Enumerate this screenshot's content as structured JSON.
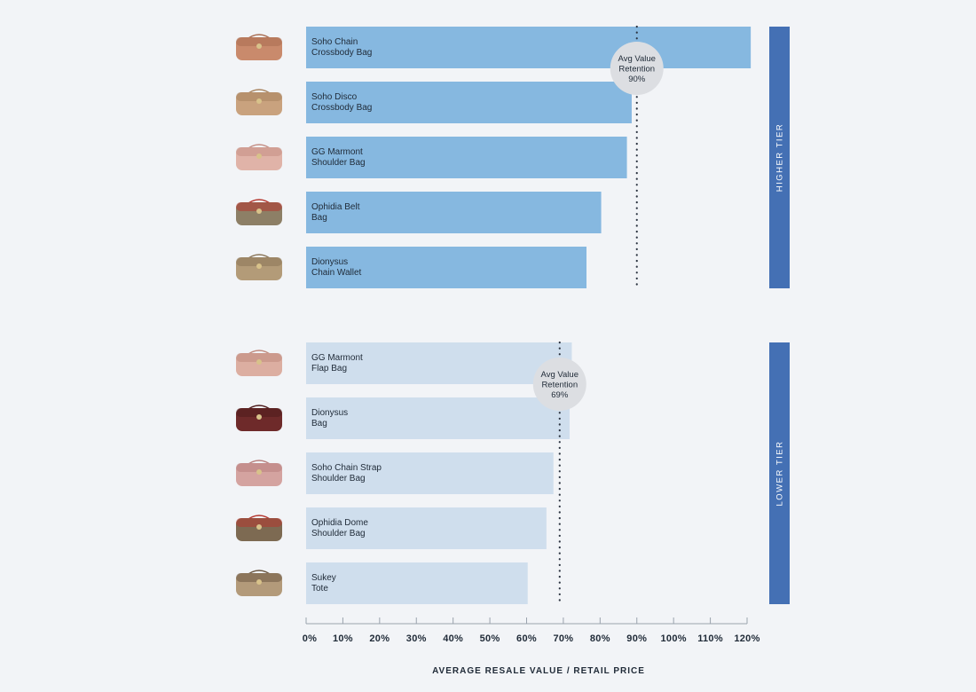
{
  "chart_data": {
    "type": "bar",
    "orientation": "horizontal",
    "xlabel": "AVERAGE RESALE VALUE / RETAIL PRICE",
    "xlim": [
      0,
      120
    ],
    "xticks": [
      "0%",
      "10%",
      "20%",
      "30%",
      "40%",
      "50%",
      "60%",
      "70%",
      "80%",
      "90%",
      "100%",
      "110%",
      "120%"
    ],
    "groups": [
      {
        "tier": "HIGHER TIER",
        "bar_color": "#86b8e0",
        "tier_color": "#4470b4",
        "avg_value": 90,
        "avg_label": [
          "Avg Value",
          "Retention",
          "90%"
        ],
        "bars": [
          {
            "label": [
              "Soho Chain",
              "Crossbody Bag"
            ],
            "value": 121,
            "icon": "soho-chain-crossbody-bag-icon"
          },
          {
            "label": [
              "Soho Disco",
              "Crossbody Bag"
            ],
            "value": 88.6,
            "icon": "soho-disco-crossbody-bag-icon"
          },
          {
            "label": [
              "GG Marmont",
              "Shoulder Bag"
            ],
            "value": 87.3,
            "icon": "gg-marmont-shoulder-bag-icon"
          },
          {
            "label": [
              "Ophidia Belt",
              "Bag"
            ],
            "value": 80.3,
            "icon": "ophidia-belt-bag-icon"
          },
          {
            "label": [
              "Dionysus",
              "Chain Wallet"
            ],
            "value": 76.3,
            "icon": "dionysus-chain-wallet-icon"
          }
        ]
      },
      {
        "tier": "LOWER TIER",
        "bar_color": "#cfdeed",
        "tier_color": "#4470b4",
        "avg_value": 69,
        "avg_label": [
          "Avg Value",
          "Retention",
          "69%"
        ],
        "bars": [
          {
            "label": [
              "GG Marmont",
              "Flap Bag"
            ],
            "value": 72.3,
            "icon": "gg-marmont-flap-bag-icon"
          },
          {
            "label": [
              "Dionysus",
              "Bag"
            ],
            "value": 71.7,
            "icon": "dionysus-bag-icon"
          },
          {
            "label": [
              "Soho Chain Strap",
              "Shoulder Bag"
            ],
            "value": 67.3,
            "icon": "soho-chain-strap-shoulder-bag-icon"
          },
          {
            "label": [
              "Ophidia Dome",
              "Shoulder Bag"
            ],
            "value": 65.4,
            "icon": "ophidia-dome-shoulder-bag-icon"
          },
          {
            "label": [
              "Sukey",
              "Tote"
            ],
            "value": 60.3,
            "icon": "sukey-tote-icon"
          }
        ]
      }
    ],
    "grid": false,
    "legend": "none"
  }
}
